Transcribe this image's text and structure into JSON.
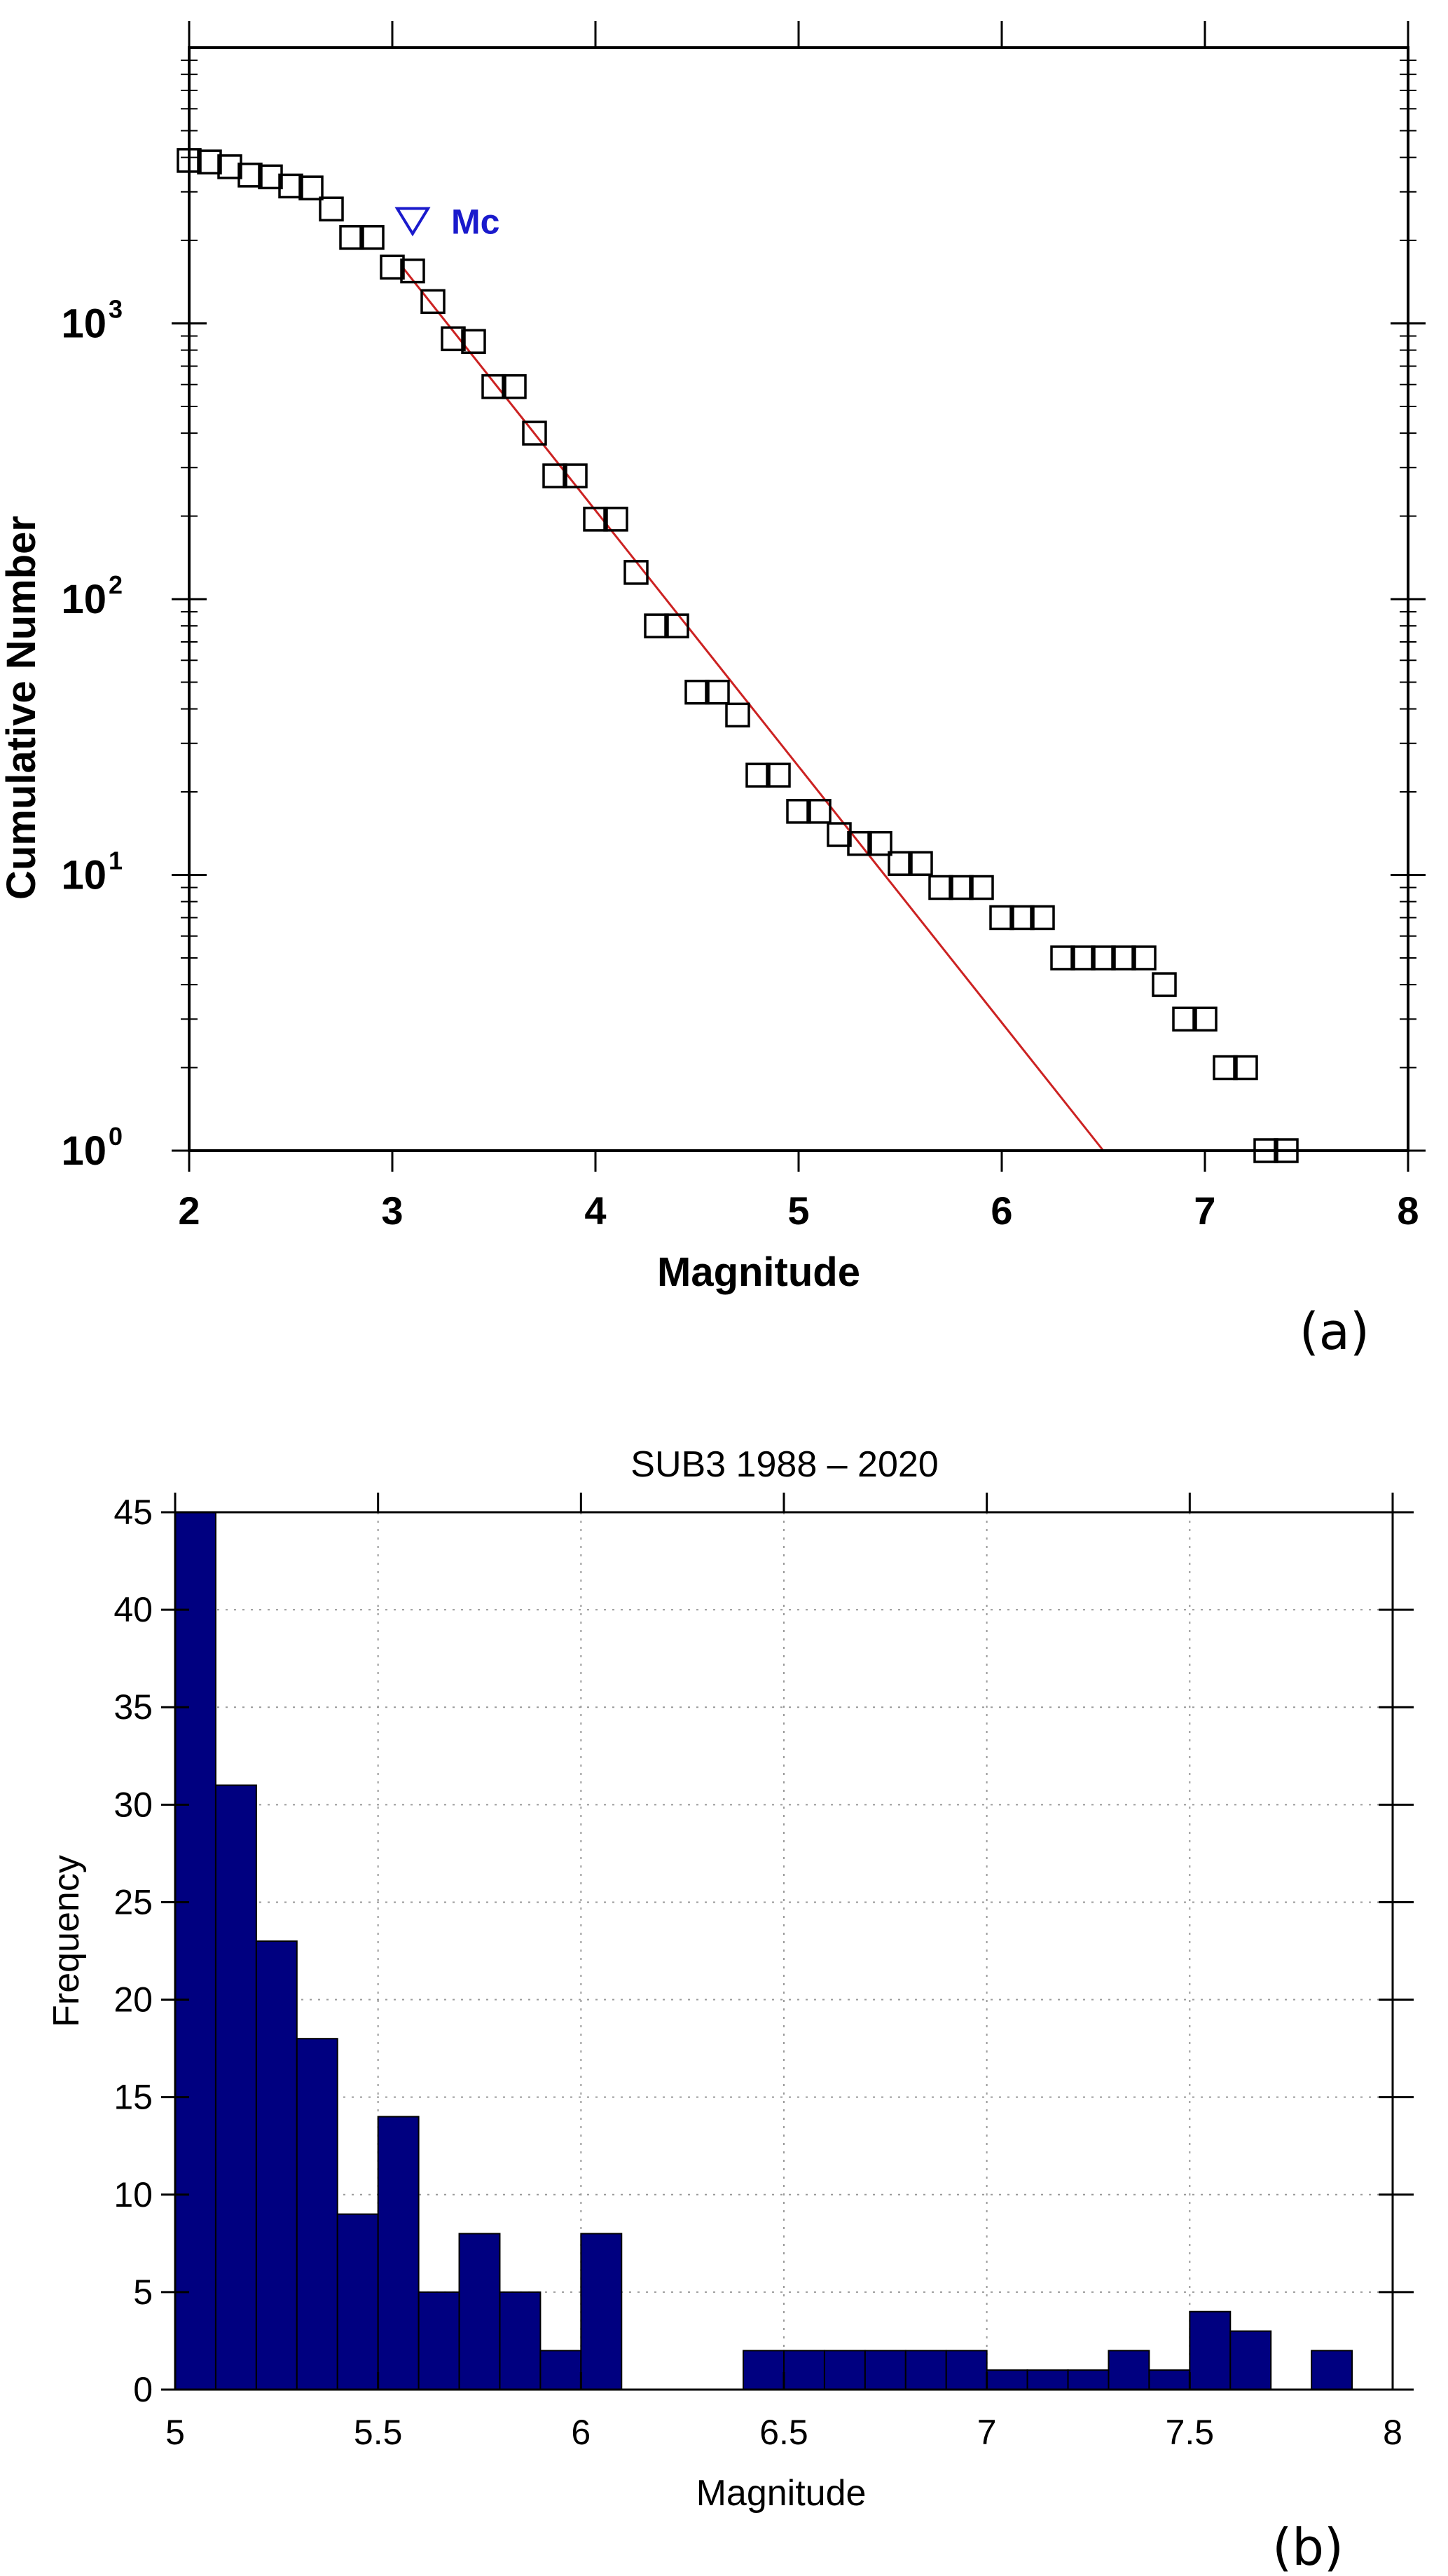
{
  "chart_data": [
    {
      "type": "scatter",
      "panel_label": "(a)",
      "xlabel": "Magnitude",
      "ylabel": "Cumulative Number",
      "xlim": [
        2,
        8
      ],
      "ylim": [
        1,
        10000
      ],
      "y_scale": "log",
      "x_ticks": [
        "2",
        "3",
        "4",
        "5",
        "6",
        "7",
        "8"
      ],
      "y_ticks": [
        {
          "base": "10",
          "exp": "0",
          "value": 1
        },
        {
          "base": "10",
          "exp": "1",
          "value": 10
        },
        {
          "base": "10",
          "exp": "2",
          "value": 100
        },
        {
          "base": "10",
          "exp": "3",
          "value": 1000
        }
      ],
      "colors": {
        "markers": "#000000",
        "fit": "#cc2222",
        "mc": "#1a1acc"
      },
      "points": [
        [
          2.0,
          3900
        ],
        [
          2.1,
          3850
        ],
        [
          2.2,
          3700
        ],
        [
          2.3,
          3450
        ],
        [
          2.4,
          3400
        ],
        [
          2.5,
          3150
        ],
        [
          2.6,
          3100
        ],
        [
          2.7,
          2600
        ],
        [
          2.8,
          2050
        ],
        [
          2.9,
          2050
        ],
        [
          3.0,
          1600
        ],
        [
          3.1,
          1550
        ],
        [
          3.2,
          1200
        ],
        [
          3.3,
          880
        ],
        [
          3.4,
          860
        ],
        [
          3.5,
          590
        ],
        [
          3.6,
          590
        ],
        [
          3.7,
          400
        ],
        [
          3.8,
          280
        ],
        [
          3.9,
          280
        ],
        [
          4.0,
          195
        ],
        [
          4.1,
          195
        ],
        [
          4.2,
          125
        ],
        [
          4.3,
          80
        ],
        [
          4.4,
          80
        ],
        [
          4.5,
          46
        ],
        [
          4.6,
          46
        ],
        [
          4.7,
          38
        ],
        [
          4.8,
          23
        ],
        [
          4.9,
          23
        ],
        [
          5.0,
          17
        ],
        [
          5.1,
          17
        ],
        [
          5.2,
          14
        ],
        [
          5.3,
          13
        ],
        [
          5.4,
          13
        ],
        [
          5.5,
          11
        ],
        [
          5.6,
          11
        ],
        [
          5.7,
          9
        ],
        [
          5.8,
          9
        ],
        [
          5.9,
          9
        ],
        [
          6.0,
          7
        ],
        [
          6.1,
          7
        ],
        [
          6.2,
          7
        ],
        [
          6.3,
          5
        ],
        [
          6.4,
          5
        ],
        [
          6.5,
          5
        ],
        [
          6.6,
          5
        ],
        [
          6.7,
          5
        ],
        [
          6.8,
          4
        ],
        [
          6.9,
          3
        ],
        [
          7.0,
          3
        ],
        [
          7.1,
          2
        ],
        [
          7.2,
          2
        ],
        [
          7.3,
          1
        ],
        [
          7.4,
          1
        ]
      ],
      "fit_line": [
        [
          3.05,
          1600
        ],
        [
          6.5,
          1
        ]
      ],
      "mc": {
        "label": "Mc",
        "x": 3.1,
        "y": 2350
      }
    },
    {
      "type": "bar",
      "panel_label": "(b)",
      "title": "SUB3 1988 – 2020",
      "xlabel": "Magnitude",
      "ylabel": "Frequency",
      "xlim": [
        5,
        8
      ],
      "ylim": [
        0,
        45
      ],
      "x_ticks": [
        "5",
        "5.5",
        "6",
        "6.5",
        "7",
        "7.5",
        "8"
      ],
      "y_ticks": [
        "0",
        "5",
        "10",
        "15",
        "20",
        "25",
        "30",
        "35",
        "40",
        "45"
      ],
      "grid": true,
      "bar_width": 0.1,
      "bar_color": "#000080",
      "bins": [
        {
          "x": 5.0,
          "count": 45
        },
        {
          "x": 5.1,
          "count": 31
        },
        {
          "x": 5.2,
          "count": 23
        },
        {
          "x": 5.3,
          "count": 18
        },
        {
          "x": 5.4,
          "count": 9
        },
        {
          "x": 5.5,
          "count": 14
        },
        {
          "x": 5.6,
          "count": 5
        },
        {
          "x": 5.7,
          "count": 8
        },
        {
          "x": 5.8,
          "count": 5
        },
        {
          "x": 5.9,
          "count": 2
        },
        {
          "x": 6.0,
          "count": 8
        },
        {
          "x": 6.1,
          "count": 0
        },
        {
          "x": 6.2,
          "count": 0
        },
        {
          "x": 6.3,
          "count": 0
        },
        {
          "x": 6.4,
          "count": 2
        },
        {
          "x": 6.5,
          "count": 2
        },
        {
          "x": 6.6,
          "count": 2
        },
        {
          "x": 6.7,
          "count": 2
        },
        {
          "x": 6.8,
          "count": 2
        },
        {
          "x": 6.9,
          "count": 2
        },
        {
          "x": 7.0,
          "count": 1
        },
        {
          "x": 7.1,
          "count": 1
        },
        {
          "x": 7.2,
          "count": 1
        },
        {
          "x": 7.3,
          "count": 2
        },
        {
          "x": 7.4,
          "count": 1
        },
        {
          "x": 7.5,
          "count": 4
        },
        {
          "x": 7.6,
          "count": 3
        },
        {
          "x": 7.7,
          "count": 0
        },
        {
          "x": 7.8,
          "count": 2
        }
      ]
    }
  ]
}
